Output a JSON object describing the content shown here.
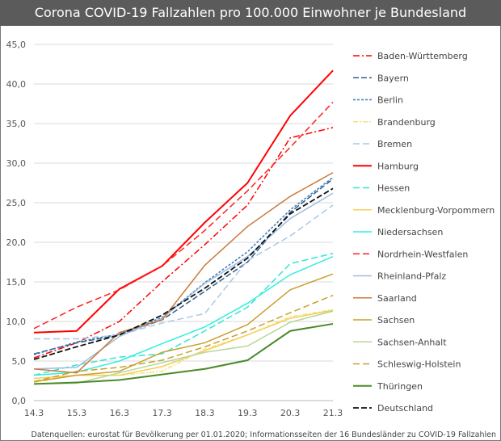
{
  "chart_data": {
    "type": "line",
    "title": "Corona COVID-19 Fallzahlen pro 100.000 Einwohner je Bundesland",
    "source": "Datenquellen: eurostat für Bevölkerung per 01.01.2020; Informationsseiten der 16 Bundesländer zu COVID-19 Fallzahlen",
    "categories": [
      "14.3",
      "15.3",
      "16.3",
      "17.3",
      "18.3",
      "19.3",
      "20.3",
      "21.3"
    ],
    "ylim": [
      0,
      45
    ],
    "yticks": [
      "0,0",
      "5,0",
      "10,0",
      "15,0",
      "20,0",
      "25,0",
      "30,0",
      "35,0",
      "40,0",
      "45,0"
    ],
    "grid": true,
    "legend": "right",
    "series": [
      {
        "name": "Baden-Württemberg",
        "color": "#ff0000",
        "dash": "8 3 2 3",
        "values": [
          5.4,
          7.3,
          10,
          15,
          19.7,
          24.7,
          33.2,
          34.5
        ]
      },
      {
        "name": "Bayern",
        "color": "#2f5f8f",
        "dash": "7 3",
        "values": [
          5.9,
          7.3,
          8.3,
          10.2,
          13.8,
          17.5,
          23.8,
          28
        ]
      },
      {
        "name": "Berlin",
        "color": "#3a7ab8",
        "dash": "3 2",
        "values": [
          5.8,
          7.4,
          8.4,
          10.5,
          14.9,
          18.8,
          24.1,
          28.2
        ]
      },
      {
        "name": "Brandenburg",
        "color": "#f5e27a",
        "dash": "6 2 2 2",
        "values": [
          2.3,
          3.2,
          3.2,
          3.7,
          6.5,
          8.3,
          10.6,
          11.5
        ]
      },
      {
        "name": "Bremen",
        "color": "#a9c8e8",
        "dash": "8 4",
        "values": [
          7.8,
          7.8,
          8.3,
          9.8,
          11,
          17.7,
          20.8,
          24.7
        ]
      },
      {
        "name": "Hamburg",
        "color": "#ff0000",
        "dash": "",
        "width": 2,
        "values": [
          8.6,
          8.8,
          14.1,
          17,
          22.5,
          27.5,
          36,
          41.7
        ]
      },
      {
        "name": "Hessen",
        "color": "#33e6d0",
        "dash": "8 4",
        "values": [
          3.2,
          4.5,
          5.5,
          5.9,
          8.8,
          11.8,
          17.3,
          18.6
        ]
      },
      {
        "name": "Mecklenburg-Vorpommern",
        "color": "#f5cd5a",
        "dash": "",
        "values": [
          2.8,
          3.2,
          3.2,
          4.3,
          6.3,
          8.3,
          10.4,
          11.4
        ]
      },
      {
        "name": "Niedersachsen",
        "color": "#33eedc",
        "dash": "",
        "values": [
          3.2,
          3.6,
          5,
          7.2,
          9.3,
          12.3,
          15.9,
          18.2
        ]
      },
      {
        "name": "Nordrhein-Westfalen",
        "color": "#ff2020",
        "dash": "8 4",
        "values": [
          9.1,
          11.8,
          14,
          17,
          21.5,
          26.5,
          32,
          37.7
        ]
      },
      {
        "name": "Rheinland-Pfalz",
        "color": "#9dbde0",
        "dash": "",
        "values": [
          4,
          4.2,
          8.1,
          10.4,
          14.8,
          18.2,
          23,
          26.2
        ]
      },
      {
        "name": "Saarland",
        "color": "#c87a3c",
        "dash": "",
        "values": [
          4,
          3.5,
          8.6,
          10.2,
          17.1,
          22,
          25.8,
          28.8
        ]
      },
      {
        "name": "Sachsen",
        "color": "#c8a030",
        "dash": "",
        "values": [
          2.4,
          3.2,
          3.7,
          6.1,
          7.3,
          9.6,
          14,
          16
        ]
      },
      {
        "name": "Sachsen-Anhalt",
        "color": "#b5d89a",
        "dash": "",
        "values": [
          2.1,
          2.2,
          3.5,
          4.8,
          6.1,
          6.9,
          9.9,
          11.3
        ]
      },
      {
        "name": "Schleswig-Holstein",
        "color": "#c8a030",
        "dash": "8 4",
        "values": [
          2.4,
          3.7,
          4.2,
          5.1,
          6.8,
          8.8,
          11.1,
          13.3
        ]
      },
      {
        "name": "Thüringen",
        "color": "#4a8a2a",
        "dash": "",
        "width": 2,
        "values": [
          2.1,
          2.3,
          2.6,
          3.3,
          4,
          5.1,
          8.8,
          9.7
        ]
      },
      {
        "name": "Deutschland",
        "color": "#111111",
        "dash": "7 3",
        "width": 1.8,
        "values": [
          5.2,
          6.8,
          8.3,
          10.8,
          14.2,
          18,
          23.6,
          26.8
        ]
      }
    ]
  }
}
